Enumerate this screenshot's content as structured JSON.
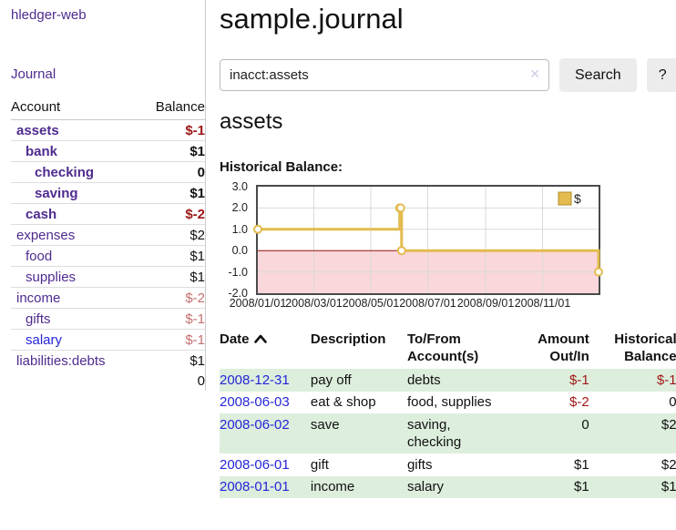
{
  "app_title": "hledger-web",
  "sidebar": {
    "journal_label": "Journal",
    "accounts": {
      "col_account": "Account",
      "col_balance": "Balance",
      "rows": [
        {
          "name": "assets",
          "balance": "$-1",
          "level": 0,
          "bold": true,
          "negative": "strong"
        },
        {
          "name": "bank",
          "balance": "$1",
          "level": 1,
          "bold": true,
          "negative": null
        },
        {
          "name": "checking",
          "balance": "0",
          "level": 2,
          "bold": true,
          "negative": null
        },
        {
          "name": "saving",
          "balance": "$1",
          "level": 2,
          "bold": true,
          "negative": null
        },
        {
          "name": "cash",
          "balance": "$-2",
          "level": 1,
          "bold": true,
          "negative": "strong"
        },
        {
          "name": "expenses",
          "balance": "$2",
          "level": 0,
          "bold": false,
          "negative": null
        },
        {
          "name": "food",
          "balance": "$1",
          "level": 1,
          "bold": false,
          "negative": null
        },
        {
          "name": "supplies",
          "balance": "$1",
          "level": 1,
          "bold": false,
          "negative": null
        },
        {
          "name": "income",
          "balance": "$-2",
          "level": 0,
          "bold": false,
          "negative": "soft"
        },
        {
          "name": "gifts",
          "balance": "$-1",
          "level": 1,
          "bold": false,
          "negative": "soft"
        },
        {
          "name": "salary",
          "balance": "$-1",
          "level": 1,
          "bold": false,
          "negative": "soft",
          "unvisited": true
        },
        {
          "name": "liabilities:debts",
          "balance": "$1",
          "level": 0,
          "bold": false,
          "negative": null
        }
      ],
      "total": "0"
    }
  },
  "main": {
    "title": "sample.journal",
    "search": {
      "value": "inacct:assets",
      "button": "Search",
      "help": "?",
      "clear_glyph": "✕"
    },
    "heading": "assets",
    "chart_title": "Historical Balance:"
  },
  "chart_data": {
    "type": "line",
    "step": true,
    "title": "Historical Balance",
    "series": [
      {
        "name": "$",
        "color": "#e3bb4e",
        "points": [
          {
            "date": "2008-01-01",
            "value": 1
          },
          {
            "date": "2008-06-01",
            "value": 2
          },
          {
            "date": "2008-06-02",
            "value": 2
          },
          {
            "date": "2008-06-03",
            "value": 0
          },
          {
            "date": "2008-12-31",
            "value": -1
          }
        ]
      }
    ],
    "x_ticks": [
      "2008/01/01",
      "2008/03/01",
      "2008/05/01",
      "2008/07/01",
      "2008/09/01",
      "2008/11/01"
    ],
    "y_ticks": [
      3,
      2,
      1,
      0,
      -1,
      -2
    ],
    "ylim": [
      -2,
      3
    ],
    "legend": {
      "position": "top-right",
      "label": "$"
    },
    "grid": true,
    "negative_region_fill": "#fad7da",
    "zero_line_color": "#8f1010"
  },
  "register": {
    "headers": {
      "date": "Date",
      "description": "Description",
      "accounts": "To/From Account(s)",
      "amount": "Amount Out/In",
      "balance": "Historical Balance"
    },
    "rows": [
      {
        "date": "2008-12-31",
        "description": "pay off",
        "accounts": "debts",
        "amount": "$-1",
        "balance": "$-1",
        "amount_negative": true,
        "balance_negative": true
      },
      {
        "date": "2008-06-03",
        "description": "eat & shop",
        "accounts": "food, supplies",
        "amount": "$-2",
        "balance": "0",
        "amount_negative": true,
        "balance_negative": false
      },
      {
        "date": "2008-06-02",
        "description": "save",
        "accounts": "saving, checking",
        "amount": "0",
        "balance": "$2",
        "amount_negative": false,
        "balance_negative": false
      },
      {
        "date": "2008-06-01",
        "description": "gift",
        "accounts": "gifts",
        "amount": "$1",
        "balance": "$2",
        "amount_negative": false,
        "balance_negative": false
      },
      {
        "date": "2008-01-01",
        "description": "income",
        "accounts": "salary",
        "amount": "$1",
        "balance": "$1",
        "amount_negative": false,
        "balance_negative": false
      }
    ]
  },
  "icons": {
    "sort_ascending": "chevron-up",
    "clear_search": "x-mark"
  },
  "colors": {
    "link_purple": "#4e2b8f",
    "link_blue": "#2525d8",
    "negative_strong": "#9e1616",
    "negative_soft": "#c4706f",
    "row_stripe_green": "#ddeedd",
    "chart_line_gold": "#e3bb4e",
    "chart_negative_fill": "#fad7da",
    "chart_zero_line": "#8f1010",
    "button_bg": "#ececec"
  }
}
